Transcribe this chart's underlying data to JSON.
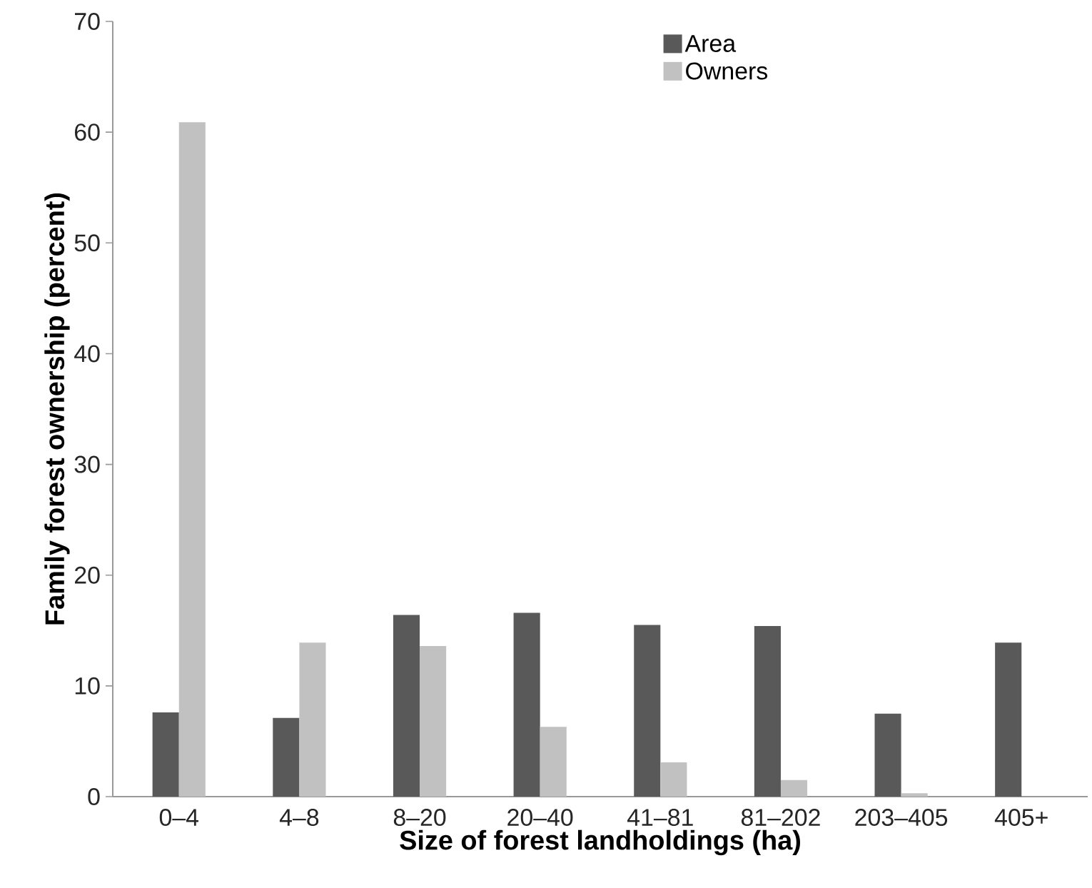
{
  "chart_data": {
    "type": "bar",
    "xlabel": "Size of forest landholdings (ha)",
    "ylabel": "Family forest ownership (percent)",
    "categories": [
      "0–4",
      "4–8",
      "8–20",
      "20–40",
      "41–81",
      "81–202",
      "203–405",
      "405+"
    ],
    "series": [
      {
        "name": "Area",
        "color": "#595959",
        "values": [
          7.6,
          7.1,
          16.4,
          16.6,
          15.5,
          15.4,
          7.5,
          13.9
        ]
      },
      {
        "name": "Owners",
        "color": "#c0c1c0",
        "values": [
          60.9,
          13.9,
          13.6,
          6.3,
          3.1,
          1.5,
          0.3,
          null
        ]
      }
    ],
    "ylim": [
      0,
      70
    ],
    "yticks": [
      0,
      10,
      20,
      30,
      40,
      50,
      60,
      70
    ],
    "grid": false,
    "legend": "top"
  }
}
